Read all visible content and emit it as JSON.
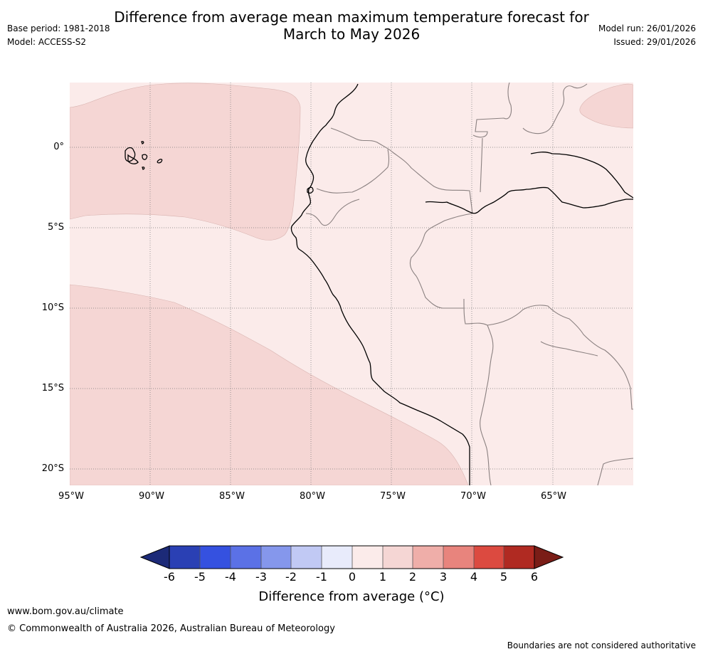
{
  "title": {
    "line1": "Difference from average mean maximum temperature forecast for",
    "line2": "March to May 2026"
  },
  "meta": {
    "base_period": "Base period: 1981-2018",
    "model": "Model: ACCESS-S2",
    "model_run": "Model run: 26/01/2026",
    "issued": "Issued: 29/01/2026"
  },
  "map": {
    "region": "Western South America (Ecuador, Peru, Bolivia) and adjacent Pacific",
    "colors": {
      "anomaly_0_1": "#fbebea",
      "anomaly_1_2": "#f5d6d4",
      "coastline": "#000000",
      "borders": "#888888",
      "grid": "#666666"
    },
    "lat_labels": [
      "0°",
      "5°S",
      "10°S",
      "15°S",
      "20°S"
    ],
    "lon_labels": [
      "95°W",
      "90°W",
      "85°W",
      "80°W",
      "75°W",
      "70°W",
      "65°W"
    ]
  },
  "colorbar": {
    "ticks": [
      "-6",
      "-5",
      "-4",
      "-3",
      "-2",
      "-1",
      "0",
      "1",
      "2",
      "3",
      "4",
      "5",
      "6"
    ],
    "colors": [
      "#1c2a78",
      "#2a40b4",
      "#3551e0",
      "#5b71e6",
      "#8597ec",
      "#c1c9f4",
      "#e8ebfb",
      "#fbebea",
      "#f5d6d4",
      "#efaea9",
      "#e8847d",
      "#dc4a40",
      "#b02a22",
      "#7a1d17"
    ],
    "label": "Difference from average (°C)"
  },
  "footer": {
    "url": "www.bom.gov.au/climate",
    "copyright": "© Commonwealth of Australia 2026, Australian Bureau of Meteorology",
    "disclaimer": "Boundaries are not considered authoritative"
  }
}
